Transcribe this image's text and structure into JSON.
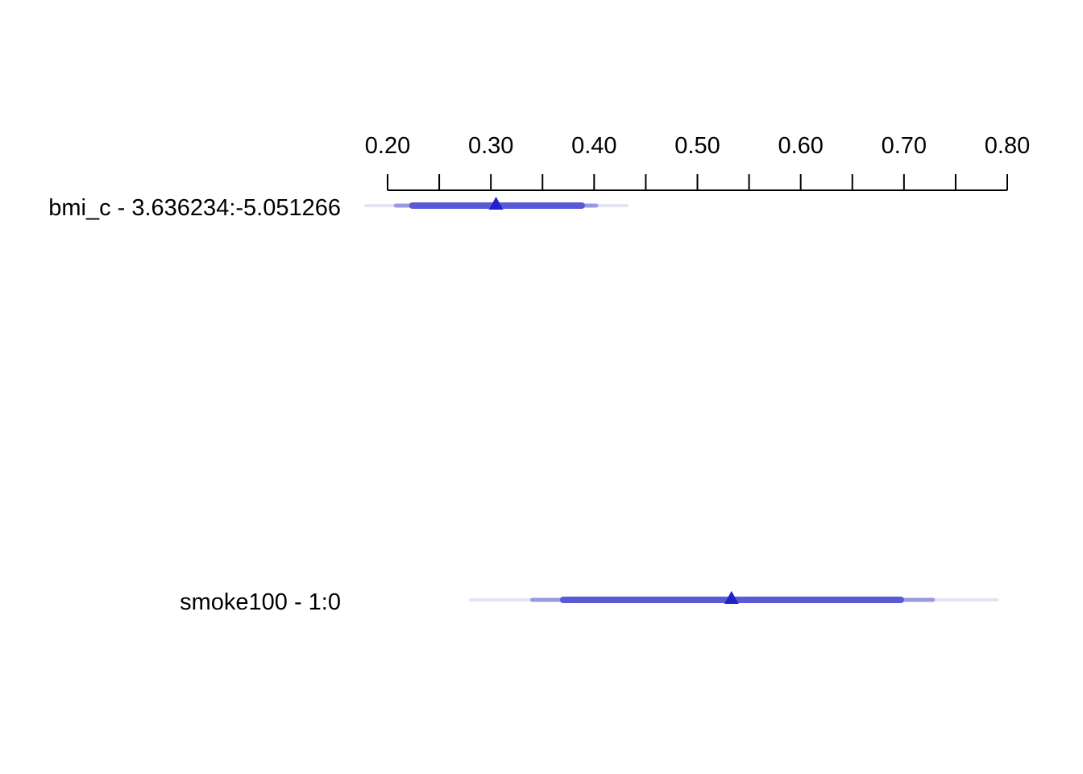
{
  "chart_data": {
    "type": "interval",
    "title": "",
    "xlabel": "",
    "ylabel": "",
    "xlim": [
      0.2,
      0.8
    ],
    "axis_position": "top",
    "major_ticks": [
      0.2,
      0.3,
      0.4,
      0.5,
      0.6,
      0.7,
      0.8
    ],
    "tick_labels": [
      "0.20",
      "0.30",
      "0.40",
      "0.50",
      "0.60",
      "0.70",
      "0.80"
    ],
    "minor_ticks": [
      0.25,
      0.35,
      0.45,
      0.55,
      0.65,
      0.75
    ],
    "grid": false,
    "colors": {
      "point": "#2222cc",
      "interval_inner": "#5a5ad6",
      "interval_middle": "#9999e0",
      "interval_outer": "#e4e4f5"
    },
    "rows": [
      {
        "label": "bmi_c - 3.636234:-5.051266",
        "estimate": 0.305,
        "interval_inner": [
          0.224,
          0.388
        ],
        "interval_middle": [
          0.208,
          0.402
        ],
        "interval_outer": [
          0.179,
          0.432
        ]
      },
      {
        "label": "smoke100 - 1:0",
        "estimate": 0.533,
        "interval_inner": [
          0.37,
          0.697
        ],
        "interval_middle": [
          0.34,
          0.728
        ],
        "interval_outer": [
          0.28,
          0.79
        ]
      }
    ]
  }
}
